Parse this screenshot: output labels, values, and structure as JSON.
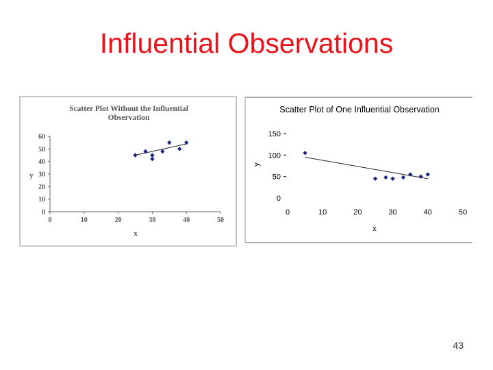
{
  "slide": {
    "title": "Influential Observations",
    "page_number": "43"
  },
  "chart_data": [
    {
      "type": "scatter",
      "title_lines": [
        "Scatter Plot Without the Influential",
        "Observation"
      ],
      "xlabel": "x",
      "ylabel": "y",
      "xlim": [
        0,
        50
      ],
      "ylim": [
        0,
        60
      ],
      "x_ticks": [
        0,
        10,
        20,
        30,
        40,
        50
      ],
      "y_ticks": [
        0,
        10,
        20,
        30,
        40,
        50,
        60
      ],
      "marker_color": "#1a237e",
      "trendline": {
        "x": [
          25,
          40
        ],
        "y": [
          45,
          54
        ]
      },
      "points": [
        {
          "x": 25,
          "y": 45
        },
        {
          "x": 28,
          "y": 48
        },
        {
          "x": 30,
          "y": 45
        },
        {
          "x": 30,
          "y": 42
        },
        {
          "x": 33,
          "y": 48
        },
        {
          "x": 35,
          "y": 55
        },
        {
          "x": 38,
          "y": 50
        },
        {
          "x": 40,
          "y": 55
        }
      ]
    },
    {
      "type": "scatter",
      "title": "Scatter Plot of One Influential Observation",
      "xlabel": "x",
      "ylabel": "y",
      "xlim": [
        0,
        50
      ],
      "ylim": [
        0,
        150
      ],
      "x_ticks": [
        0,
        10,
        20,
        30,
        40,
        50
      ],
      "y_ticks": [
        0,
        50,
        100,
        150
      ],
      "marker_color": "#1a237e",
      "trendline": {
        "x": [
          5,
          40
        ],
        "y": [
          95,
          45
        ]
      },
      "points": [
        {
          "x": 5,
          "y": 105
        },
        {
          "x": 25,
          "y": 45
        },
        {
          "x": 28,
          "y": 48
        },
        {
          "x": 30,
          "y": 45
        },
        {
          "x": 33,
          "y": 48
        },
        {
          "x": 35,
          "y": 55
        },
        {
          "x": 38,
          "y": 50
        },
        {
          "x": 40,
          "y": 55
        }
      ]
    }
  ]
}
